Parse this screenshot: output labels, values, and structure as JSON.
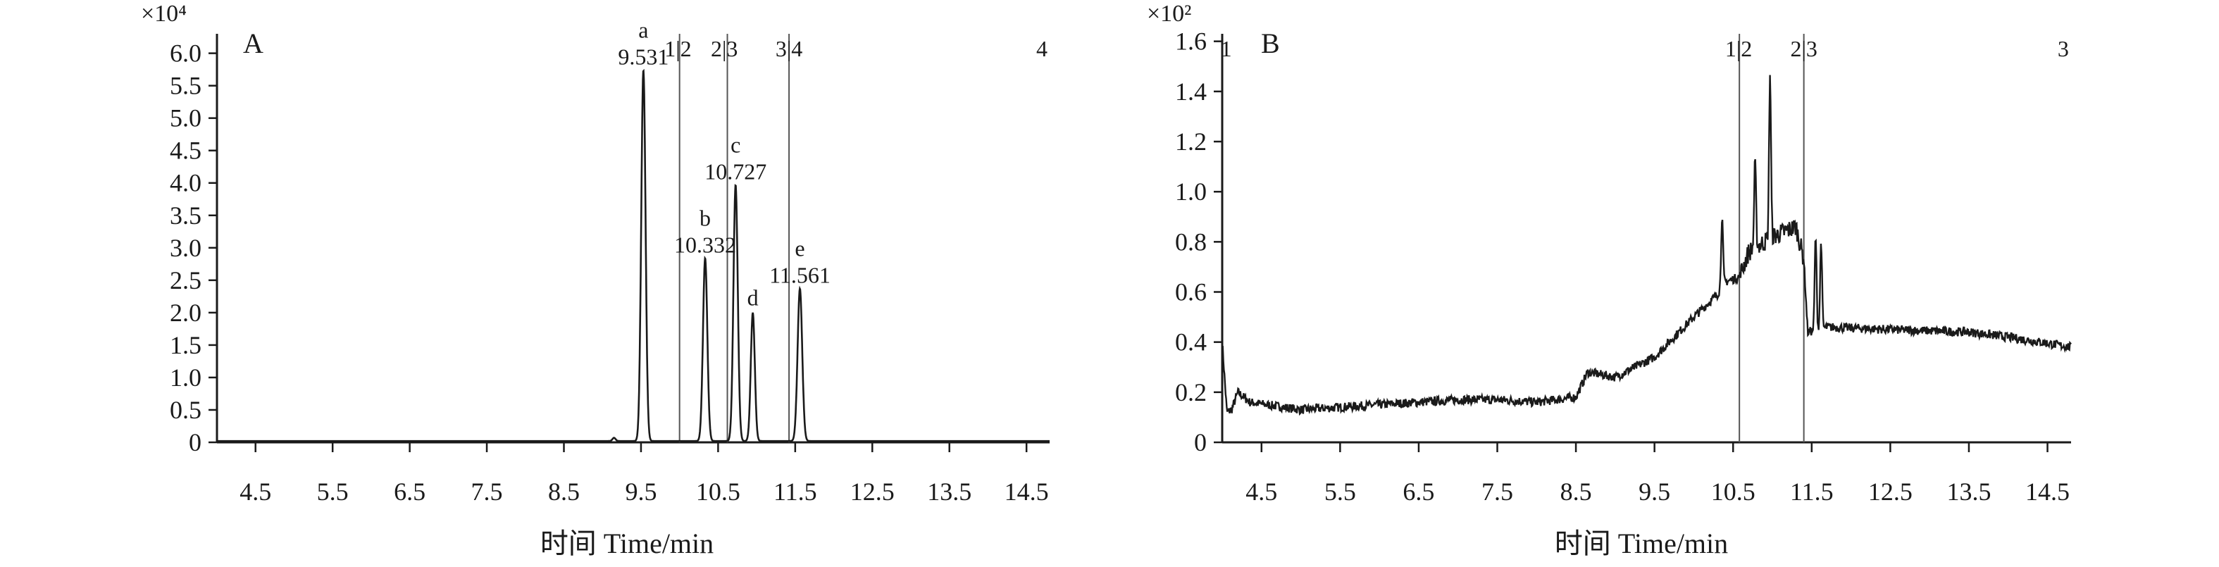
{
  "colors": {
    "trace": "#1a1a1a",
    "axis": "#1a1a1a",
    "segment_line": "#555555"
  },
  "chart_data": [
    {
      "panel": "A",
      "type": "line",
      "xlabel": "时间 Time/min",
      "ylabel": "",
      "exponent_label": "×10⁴",
      "xlim": [
        4.0,
        14.8
      ],
      "ylim": [
        0,
        6.3
      ],
      "xticks": [
        4.5,
        5.5,
        6.5,
        7.5,
        8.5,
        9.5,
        10.5,
        11.5,
        12.5,
        13.5,
        14.5
      ],
      "yticks": [
        0,
        0.5,
        1.0,
        1.5,
        2.0,
        2.5,
        3.0,
        3.5,
        4.0,
        4.5,
        5.0,
        5.5,
        6.0
      ],
      "ytick_labels": [
        "0",
        "0.5",
        "1.0",
        "1.5",
        "2.0",
        "2.5",
        "3.0",
        "3.5",
        "4.0",
        "4.5",
        "5.0",
        "5.5",
        "6.0"
      ],
      "baseline": 0.02,
      "peaks": [
        {
          "id": "a",
          "rt": 9.531,
          "height": 5.72,
          "width": 0.028,
          "rt_label": "9.531"
        },
        {
          "id": "b",
          "rt": 10.332,
          "height": 2.82,
          "width": 0.028,
          "rt_label": "10.332"
        },
        {
          "id": "c",
          "rt": 10.727,
          "height": 3.95,
          "width": 0.028,
          "rt_label": "10.727"
        },
        {
          "id": "d",
          "rt": 10.95,
          "height": 1.98,
          "width": 0.026,
          "rt_label": ""
        },
        {
          "id": "e",
          "rt": 11.561,
          "height": 2.35,
          "width": 0.03,
          "rt_label": "11.561"
        },
        {
          "id": "",
          "rt": 9.15,
          "height": 0.05,
          "width": 0.02,
          "rt_label": ""
        }
      ],
      "segment_lines": [
        10.0,
        10.62,
        11.42
      ],
      "segment_labels": [
        {
          "x": 9.98,
          "text": "1|2"
        },
        {
          "x": 10.58,
          "text": "2|3"
        },
        {
          "x": 11.42,
          "text": "3|4"
        },
        {
          "x": 14.7,
          "text": "4"
        }
      ]
    },
    {
      "panel": "B",
      "type": "line",
      "xlabel": "时间 Time/min",
      "ylabel": "",
      "exponent_label": "×10²",
      "xlim": [
        4.0,
        14.8
      ],
      "ylim": [
        0,
        1.63
      ],
      "xticks": [
        4.5,
        5.5,
        6.5,
        7.5,
        8.5,
        9.5,
        10.5,
        11.5,
        12.5,
        13.5,
        14.5
      ],
      "yticks": [
        0,
        0.2,
        0.4,
        0.6,
        0.8,
        1.0,
        1.2,
        1.4,
        1.6
      ],
      "ytick_labels": [
        "0",
        "0.2",
        "0.4",
        "0.6",
        "0.8",
        "1.0",
        "1.2",
        "1.4",
        "1.6"
      ],
      "anchor_points": [
        [
          4.0,
          0.4
        ],
        [
          4.06,
          0.12
        ],
        [
          4.12,
          0.13
        ],
        [
          4.2,
          0.2
        ],
        [
          4.35,
          0.16
        ],
        [
          5.0,
          0.13
        ],
        [
          6.0,
          0.15
        ],
        [
          7.0,
          0.17
        ],
        [
          7.5,
          0.17
        ],
        [
          8.0,
          0.16
        ],
        [
          8.5,
          0.18
        ],
        [
          8.65,
          0.28
        ],
        [
          9.0,
          0.26
        ],
        [
          9.5,
          0.34
        ],
        [
          10.0,
          0.5
        ],
        [
          10.3,
          0.59
        ],
        [
          10.4,
          0.64
        ],
        [
          10.58,
          0.66
        ],
        [
          10.7,
          0.76
        ],
        [
          11.0,
          0.82
        ],
        [
          11.3,
          0.86
        ],
        [
          11.4,
          0.73
        ],
        [
          11.45,
          0.44
        ],
        [
          11.7,
          0.46
        ],
        [
          12.5,
          0.45
        ],
        [
          13.5,
          0.44
        ],
        [
          14.0,
          0.42
        ],
        [
          14.8,
          0.38
        ]
      ],
      "spikes": [
        [
          10.36,
          0.9
        ],
        [
          10.78,
          1.11
        ],
        [
          10.97,
          1.47
        ],
        [
          11.55,
          0.82
        ],
        [
          11.62,
          0.8
        ]
      ],
      "noise_amplitude": 0.018,
      "segment_lines": [
        10.58,
        11.4
      ],
      "segment_labels": [
        {
          "x": 4.05,
          "text": "1"
        },
        {
          "x": 10.57,
          "text": "1|2"
        },
        {
          "x": 11.4,
          "text": "2|3"
        },
        {
          "x": 14.7,
          "text": "3"
        }
      ]
    }
  ]
}
